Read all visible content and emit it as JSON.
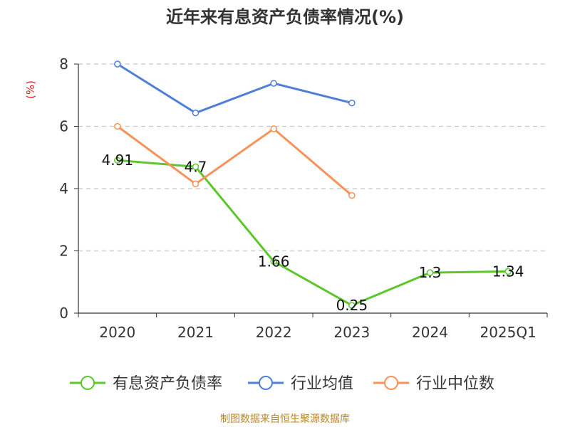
{
  "chart_data": {
    "type": "line",
    "title": "近年来有息资产负债率情况(%)",
    "ylabel": "(%)",
    "categories": [
      "2020",
      "2021",
      "2022",
      "2023",
      "2024",
      "2025Q1"
    ],
    "yticks": [
      "0",
      "2",
      "4",
      "6",
      "8"
    ],
    "ylim": [
      0,
      8
    ],
    "grid": true,
    "legend_position": "bottom",
    "series": [
      {
        "name": "有息资产负债率",
        "color": "#5cc62b",
        "values": [
          4.91,
          4.7,
          1.66,
          0.25,
          1.3,
          1.34
        ],
        "labels": [
          "4.91",
          "4.7",
          "1.66",
          "0.25",
          "1.3",
          "1.34"
        ]
      },
      {
        "name": "行业均值",
        "color": "#4f7fd6",
        "values": [
          8.0,
          6.43,
          7.38,
          6.75,
          null,
          null
        ],
        "labels": []
      },
      {
        "name": "行业中位数",
        "color": "#f5935a",
        "values": [
          6.0,
          4.15,
          5.92,
          3.78,
          null,
          null
        ],
        "labels": []
      }
    ]
  },
  "footer": "制图数据来自恒生聚源数据库"
}
